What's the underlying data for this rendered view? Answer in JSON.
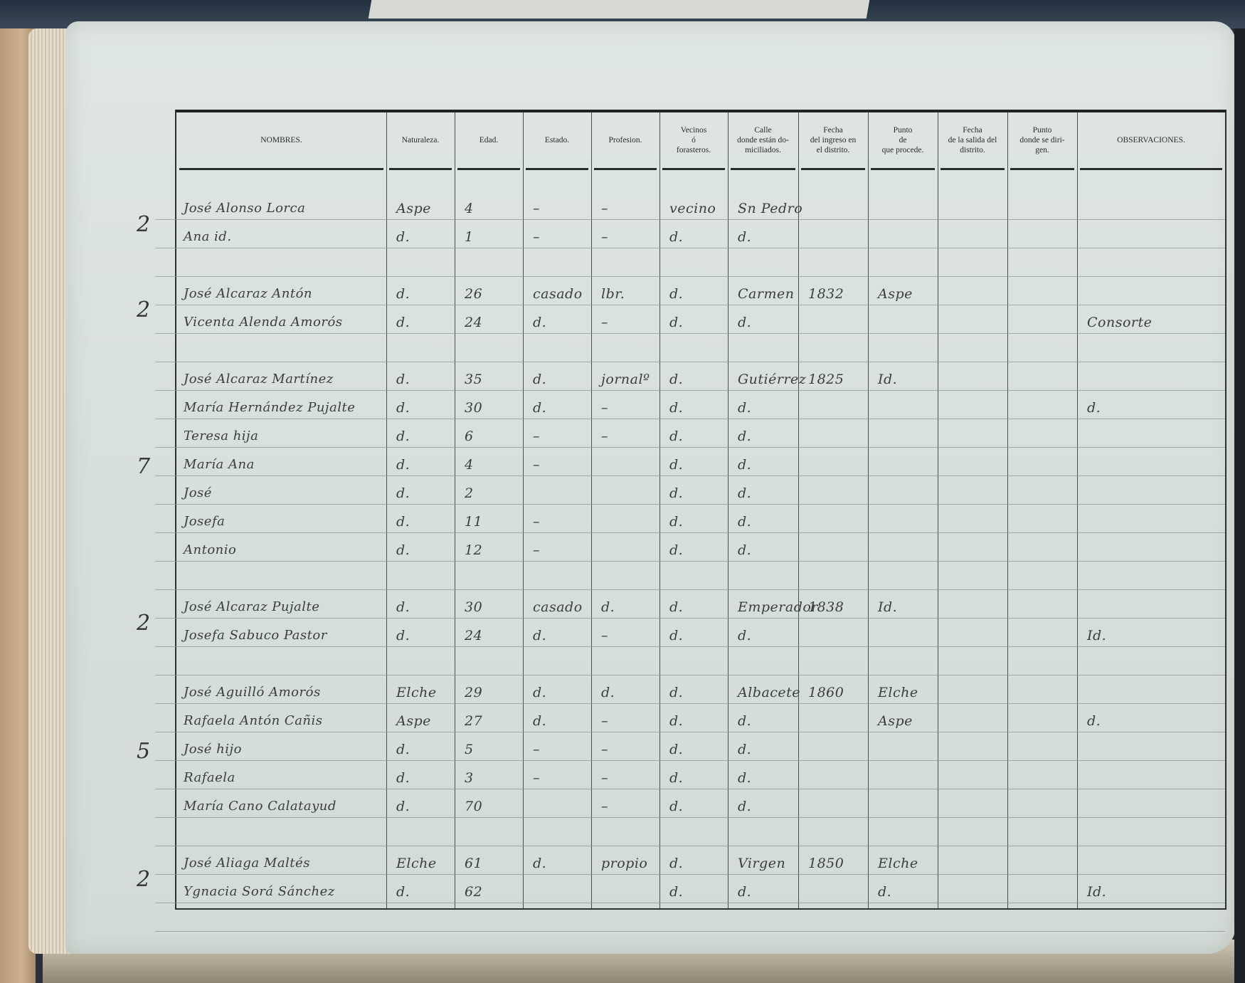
{
  "header": {
    "columns": [
      "NOMBRES.",
      "Naturaleza.",
      "Edad.",
      "Estado.",
      "Profesion.",
      "Vecinos\nó\nforasteros.",
      "Calle\ndonde están do-\nmiciliados.",
      "Fecha\ndel ingreso en\nel distrito.",
      "Punto\nde\nque procede.",
      "Fecha\nde la salida del\ndistrito.",
      "Punto\ndonde se diri-\ngen.",
      "OBSERVACIONES."
    ]
  },
  "groups": [
    {
      "count": "2",
      "rows": [
        {
          "name": "José Alonso Lorca",
          "naturaleza": "Aspe",
          "edad": "4",
          "estado": "–",
          "profesion": "–",
          "vecinos": "vecino",
          "calle": "Sn Pedro",
          "ingreso": "",
          "procede": "",
          "salida": "",
          "destino": "",
          "obs": ""
        },
        {
          "name": "Ana id.",
          "naturaleza": "d.",
          "edad": "1",
          "estado": "–",
          "profesion": "–",
          "vecinos": "d.",
          "calle": "d.",
          "ingreso": "",
          "procede": "",
          "salida": "",
          "destino": "",
          "obs": ""
        }
      ]
    },
    {
      "count": "2",
      "rows": [
        {
          "name": "José Alcaraz Antón",
          "naturaleza": "d.",
          "edad": "26",
          "estado": "casado",
          "profesion": "lbr.",
          "vecinos": "d.",
          "calle": "Carmen",
          "ingreso": "1832",
          "procede": "Aspe",
          "salida": "",
          "destino": "",
          "obs": ""
        },
        {
          "name": "Vicenta Alenda Amorós",
          "naturaleza": "d.",
          "edad": "24",
          "estado": "d.",
          "profesion": "–",
          "vecinos": "d.",
          "calle": "d.",
          "ingreso": "",
          "procede": "",
          "salida": "",
          "destino": "",
          "obs": "Consorte"
        }
      ]
    },
    {
      "count": "7",
      "rows": [
        {
          "name": "José Alcaraz Martínez",
          "naturaleza": "d.",
          "edad": "35",
          "estado": "d.",
          "profesion": "jornalº",
          "vecinos": "d.",
          "calle": "Gutiérrez",
          "ingreso": "1825",
          "procede": "Id.",
          "salida": "",
          "destino": "",
          "obs": ""
        },
        {
          "name": "María Hernández Pujalte",
          "naturaleza": "d.",
          "edad": "30",
          "estado": "d.",
          "profesion": "–",
          "vecinos": "d.",
          "calle": "d.",
          "ingreso": "",
          "procede": "",
          "salida": "",
          "destino": "",
          "obs": "d."
        },
        {
          "name": "Teresa hija",
          "naturaleza": "d.",
          "edad": "6",
          "estado": "–",
          "profesion": "–",
          "vecinos": "d.",
          "calle": "d.",
          "ingreso": "",
          "procede": "",
          "salida": "",
          "destino": "",
          "obs": ""
        },
        {
          "name": "María Ana",
          "naturaleza": "d.",
          "edad": "4",
          "estado": "–",
          "profesion": "",
          "vecinos": "d.",
          "calle": "d.",
          "ingreso": "",
          "procede": "",
          "salida": "",
          "destino": "",
          "obs": ""
        },
        {
          "name": "José",
          "naturaleza": "d.",
          "edad": "2",
          "estado": "",
          "profesion": "",
          "vecinos": "d.",
          "calle": "d.",
          "ingreso": "",
          "procede": "",
          "salida": "",
          "destino": "",
          "obs": ""
        },
        {
          "name": "Josefa",
          "naturaleza": "d.",
          "edad": "11",
          "estado": "–",
          "profesion": "",
          "vecinos": "d.",
          "calle": "d.",
          "ingreso": "",
          "procede": "",
          "salida": "",
          "destino": "",
          "obs": ""
        },
        {
          "name": "Antonio",
          "naturaleza": "d.",
          "edad": "12",
          "estado": "–",
          "profesion": "",
          "vecinos": "d.",
          "calle": "d.",
          "ingreso": "",
          "procede": "",
          "salida": "",
          "destino": "",
          "obs": ""
        }
      ]
    },
    {
      "count": "2",
      "rows": [
        {
          "name": "José Alcaraz Pujalte",
          "naturaleza": "d.",
          "edad": "30",
          "estado": "casado",
          "profesion": "d.",
          "vecinos": "d.",
          "calle": "Emperador",
          "ingreso": "1838",
          "procede": "Id.",
          "salida": "",
          "destino": "",
          "obs": ""
        },
        {
          "name": "Josefa Sabuco Pastor",
          "naturaleza": "d.",
          "edad": "24",
          "estado": "d.",
          "profesion": "–",
          "vecinos": "d.",
          "calle": "d.",
          "ingreso": "",
          "procede": "",
          "salida": "",
          "destino": "",
          "obs": "Id."
        }
      ]
    },
    {
      "count": "5",
      "rows": [
        {
          "name": "José Aguilló Amorós",
          "naturaleza": "Elche",
          "edad": "29",
          "estado": "d.",
          "profesion": "d.",
          "vecinos": "d.",
          "calle": "Albacete",
          "ingreso": "1860",
          "procede": "Elche",
          "salida": "",
          "destino": "",
          "obs": ""
        },
        {
          "name": "Rafaela Antón Cañis",
          "naturaleza": "Aspe",
          "edad": "27",
          "estado": "d.",
          "profesion": "–",
          "vecinos": "d.",
          "calle": "d.",
          "ingreso": "",
          "procede": "Aspe",
          "salida": "",
          "destino": "",
          "obs": "d."
        },
        {
          "name": "José hijo",
          "naturaleza": "d.",
          "edad": "5",
          "estado": "–",
          "profesion": "–",
          "vecinos": "d.",
          "calle": "d.",
          "ingreso": "",
          "procede": "",
          "salida": "",
          "destino": "",
          "obs": ""
        },
        {
          "name": "Rafaela",
          "naturaleza": "d.",
          "edad": "3",
          "estado": "–",
          "profesion": "–",
          "vecinos": "d.",
          "calle": "d.",
          "ingreso": "",
          "procede": "",
          "salida": "",
          "destino": "",
          "obs": ""
        },
        {
          "name": "María Cano Calatayud",
          "naturaleza": "d.",
          "edad": "70",
          "estado": "",
          "profesion": "–",
          "vecinos": "d.",
          "calle": "d.",
          "ingreso": "",
          "procede": "",
          "salida": "",
          "destino": "",
          "obs": ""
        }
      ]
    },
    {
      "count": "2",
      "rows": [
        {
          "name": "José Aliaga Maltés",
          "naturaleza": "Elche",
          "edad": "61",
          "estado": "d.",
          "profesion": "propio",
          "vecinos": "d.",
          "calle": "Virgen",
          "ingreso": "1850",
          "procede": "Elche",
          "salida": "",
          "destino": "",
          "obs": ""
        },
        {
          "name": "Ygnacia Sorá Sánchez",
          "naturaleza": "d.",
          "edad": "62",
          "estado": "",
          "profesion": "",
          "vecinos": "d.",
          "calle": "d.",
          "ingreso": "",
          "procede": "d.",
          "salida": "",
          "destino": "",
          "obs": "Id."
        }
      ]
    }
  ],
  "colors": {
    "paper": "#dbe2e0",
    "ink": "#3b3d3f",
    "rule": "#2c2f33"
  }
}
